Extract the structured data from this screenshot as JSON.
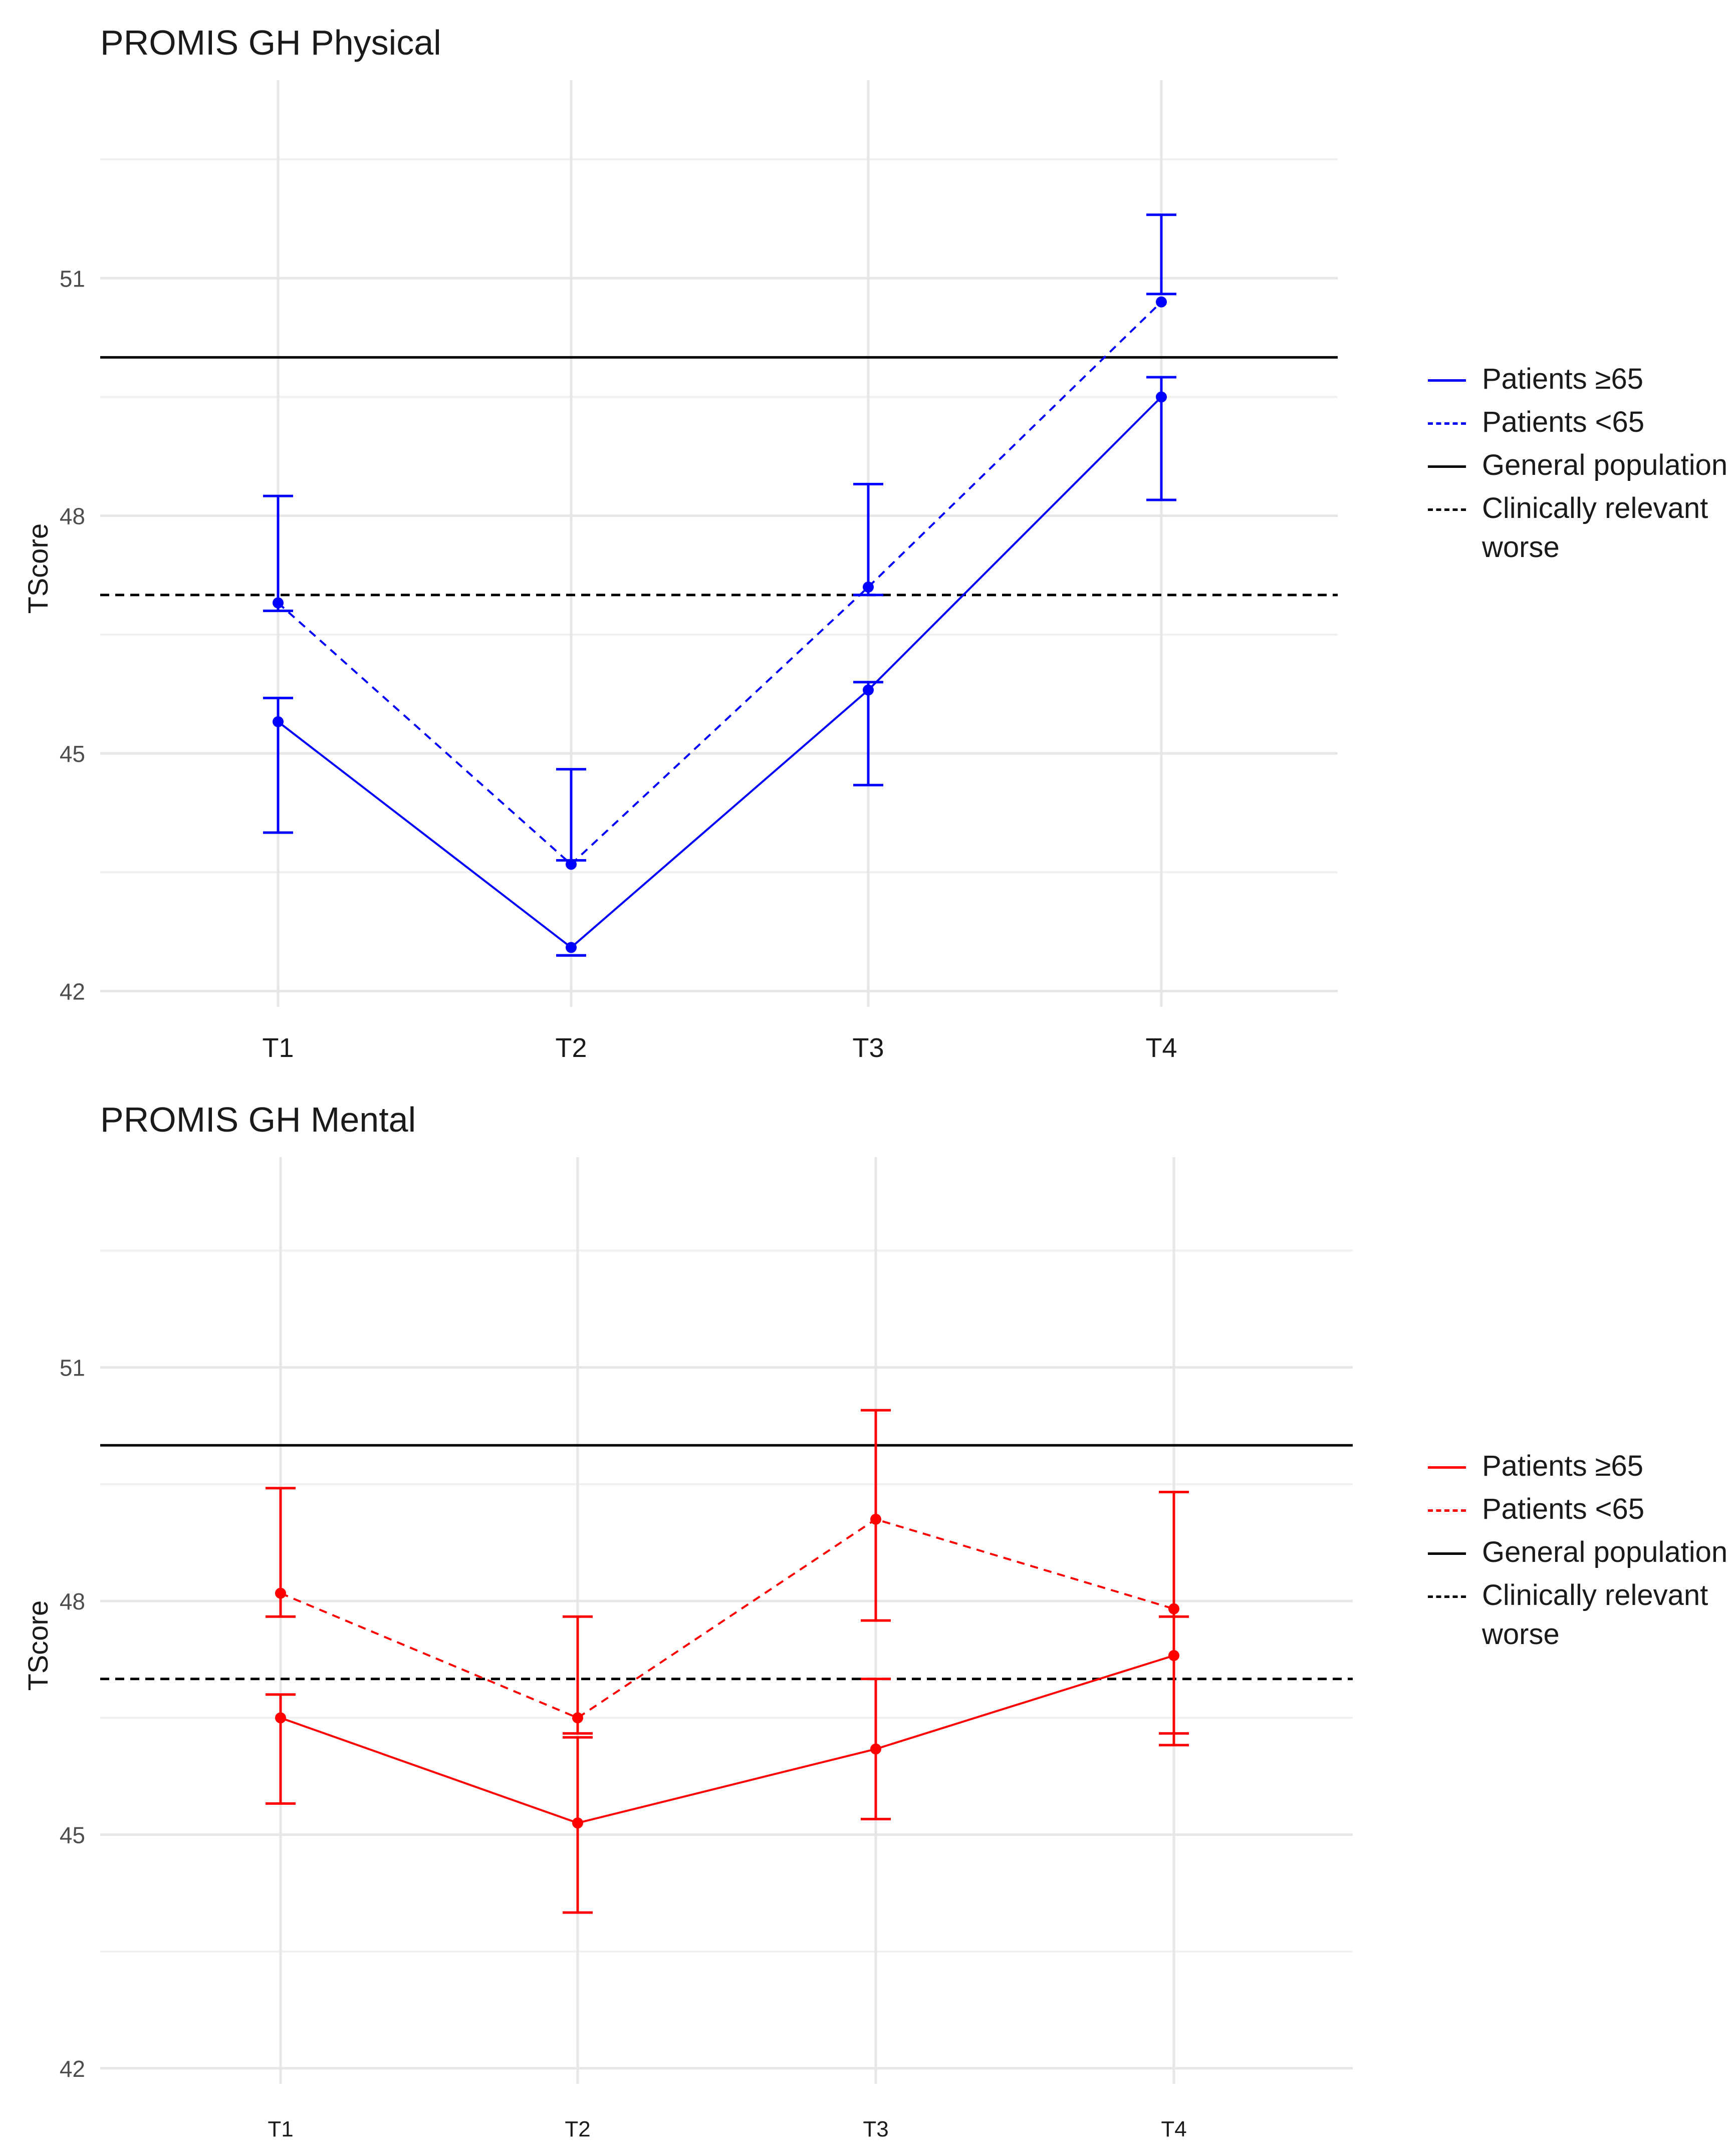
{
  "chart_data": [
    {
      "type": "line",
      "title": "PROMIS GH Physical",
      "xlabel": "",
      "ylabel": "TScore",
      "categories": [
        "T1",
        "T2",
        "T3",
        "T4"
      ],
      "yticks": [
        42,
        45,
        48,
        51
      ],
      "ylim": [
        41.8,
        53.5
      ],
      "grid": true,
      "color": "#0000ff",
      "series": [
        {
          "name": "Patients ≥65",
          "linestyle": "solid",
          "values": [
            45.4,
            42.55,
            45.8,
            49.5
          ],
          "lower": [
            44.0,
            42.45,
            44.6,
            48.2
          ],
          "upper": [
            45.7,
            42.45,
            45.9,
            49.75
          ]
        },
        {
          "name": "Patients <65",
          "linestyle": "dashed",
          "values": [
            46.9,
            43.6,
            47.1,
            50.7
          ],
          "lower": [
            46.8,
            43.65,
            47.0,
            50.8
          ],
          "upper": [
            48.25,
            44.8,
            48.4,
            51.8
          ]
        }
      ],
      "reference_lines": [
        {
          "name": "General population",
          "value": 50.0,
          "linestyle": "solid",
          "color": "#000000"
        },
        {
          "name": "Clinically relevant worse",
          "value": 47.0,
          "linestyle": "dashed",
          "color": "#000000"
        }
      ],
      "legend": {
        "position": "right",
        "entries": [
          "Patients ≥65",
          "Patients <65",
          "General population",
          "Clinically relevant",
          "worse"
        ]
      }
    },
    {
      "type": "line",
      "title": "PROMIS GH Mental",
      "xlabel": "",
      "ylabel": "TScore",
      "categories": [
        "T1",
        "T2",
        "T3",
        "T4"
      ],
      "yticks": [
        42,
        45,
        48,
        51
      ],
      "ylim": [
        41.8,
        53.7
      ],
      "grid": true,
      "color": "#ff0000",
      "series": [
        {
          "name": "Patients ≥65",
          "linestyle": "solid",
          "values": [
            46.5,
            45.15,
            46.1,
            47.3
          ],
          "lower": [
            45.4,
            44.0,
            45.2,
            46.15
          ],
          "upper": [
            46.8,
            46.25,
            47.0,
            47.8
          ]
        },
        {
          "name": "Patients <65",
          "linestyle": "dashed",
          "values": [
            48.1,
            46.5,
            49.05,
            47.9
          ],
          "lower": [
            47.8,
            46.3,
            47.75,
            46.3
          ],
          "upper": [
            49.45,
            47.8,
            50.45,
            49.4
          ]
        }
      ],
      "reference_lines": [
        {
          "name": "General population",
          "value": 50.0,
          "linestyle": "solid",
          "color": "#000000"
        },
        {
          "name": "Clinically relevant worse",
          "value": 47.0,
          "linestyle": "dashed",
          "color": "#000000"
        }
      ],
      "legend": {
        "position": "right",
        "entries": [
          "Patients ≥65",
          "Patients <65",
          "General population",
          "Clinically relevant",
          "worse"
        ]
      }
    }
  ]
}
